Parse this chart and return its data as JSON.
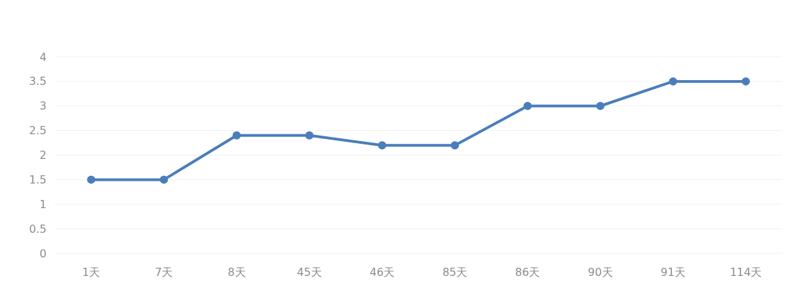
{
  "chart_data": {
    "type": "line",
    "categories": [
      "1天",
      "7天",
      "8天",
      "45天",
      "46天",
      "85天",
      "86天",
      "90天",
      "91天",
      "114天"
    ],
    "values": [
      1.5,
      1.5,
      2.4,
      2.4,
      2.2,
      2.2,
      3,
      3,
      3.5,
      3.5
    ],
    "color": "#4a7ebb",
    "ylim": [
      0,
      4
    ],
    "yticks": [
      0,
      0.5,
      1,
      1.5,
      2,
      2.5,
      3,
      3.5,
      4
    ],
    "grid": "y",
    "marker": "circle"
  }
}
